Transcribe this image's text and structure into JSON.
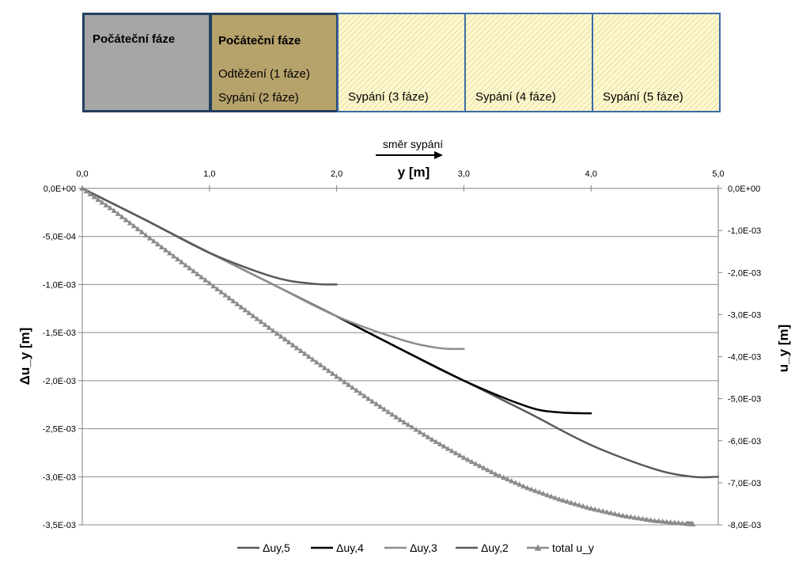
{
  "phases": [
    {
      "lines": [
        "Počáteční fáze"
      ],
      "bold_first": true
    },
    {
      "lines": [
        "Počáteční fáze",
        "Odtěžení (1 fáze)",
        "Sypání (2 fáze)"
      ],
      "bold_first": true
    },
    {
      "lines": [
        "Sypání (3 fáze)"
      ],
      "bold_first": false
    },
    {
      "lines": [
        "Sypání (4 fáze)"
      ],
      "bold_first": false
    },
    {
      "lines": [
        "Sypání (5 fáze)"
      ],
      "bold_first": false
    }
  ],
  "direction_label": "směr sypání",
  "colors": {
    "phase0_fill": "#a6a6a6",
    "phase1_fill": "#b6a26b",
    "phase_hatch_fill": "#fdf8cf",
    "phase_border": "#3b6aa6",
    "grid": "#8c8c8c",
    "series_dark": "#595959",
    "series_black": "#000000",
    "series_light": "#8c8c8c",
    "series_total": "#8c8c8c"
  },
  "chart_data": {
    "type": "line",
    "xlabel": "y [m]",
    "ylabel_left": "Δu_y [m]",
    "ylabel_right": "u_y [m]",
    "xlim": [
      0,
      5
    ],
    "x_ticks": [
      "0,0",
      "1,0",
      "2,0",
      "3,0",
      "4,0",
      "5,0"
    ],
    "ylim_left": [
      -0.0035,
      0
    ],
    "y_ticks_left": [
      "0,0E+00",
      "-5,0E-04",
      "-1,0E-03",
      "-1,5E-03",
      "-2,0E-03",
      "-2,5E-03",
      "-3,0E-03",
      "-3,5E-03"
    ],
    "ylim_right": [
      -0.008,
      0
    ],
    "y_ticks_right": [
      "0,0E+00",
      "-1,0E-03",
      "-2,0E-03",
      "-3,0E-03",
      "-4,0E-03",
      "-5,0E-03",
      "-6,0E-03",
      "-7,0E-03",
      "-8,0E-03"
    ],
    "grid": "horizontal",
    "legend_position": "bottom",
    "series": [
      {
        "name": "Δuy,5",
        "axis": "left",
        "color": "#595959",
        "marker": "none",
        "x": [
          0,
          0.5,
          1.0,
          1.5,
          2.0,
          2.5,
          3.0,
          3.5,
          4.0,
          4.5,
          4.8,
          5.0
        ],
        "y": [
          0,
          -0.00033,
          -0.00067,
          -0.001,
          -0.00133,
          -0.00167,
          -0.002,
          -0.00233,
          -0.00267,
          -0.00292,
          -0.003,
          -0.003
        ]
      },
      {
        "name": "Δuy,4",
        "axis": "left",
        "color": "#000000",
        "marker": "none",
        "x": [
          2.0,
          2.5,
          3.0,
          3.5,
          3.75,
          4.0
        ],
        "y": [
          -0.00133,
          -0.00167,
          -0.002,
          -0.00227,
          -0.00233,
          -0.00234
        ]
      },
      {
        "name": "Δuy,3",
        "axis": "left",
        "color": "#8c8c8c",
        "marker": "none",
        "x": [
          0,
          0.5,
          1.0,
          1.5,
          2.0,
          2.5,
          2.8,
          3.0
        ],
        "y": [
          0,
          -0.00033,
          -0.00067,
          -0.001,
          -0.00133,
          -0.00157,
          -0.00166,
          -0.00167
        ]
      },
      {
        "name": "Δuy,2",
        "axis": "left",
        "color": "#595959",
        "marker": "none",
        "x": [
          0,
          0.5,
          1.0,
          1.5,
          1.8,
          2.0
        ],
        "y": [
          0,
          -0.00033,
          -0.00067,
          -0.00092,
          -0.00099,
          -0.001
        ]
      },
      {
        "name": "total u_y",
        "axis": "right",
        "color": "#8c8c8c",
        "marker": "triangle",
        "x": [
          0,
          0.25,
          0.5,
          0.75,
          1.0,
          1.25,
          1.5,
          1.75,
          2.0,
          2.25,
          2.5,
          2.75,
          3.0,
          3.25,
          3.5,
          3.75,
          4.0,
          4.25,
          4.5,
          4.75,
          4.8
        ],
        "y": [
          0,
          -0.00053,
          -0.00111,
          -0.00168,
          -0.00225,
          -0.00282,
          -0.00338,
          -0.00393,
          -0.00447,
          -0.005,
          -0.0055,
          -0.00597,
          -0.0064,
          -0.00679,
          -0.00712,
          -0.00739,
          -0.00761,
          -0.00778,
          -0.0079,
          -0.00797,
          -0.00798
        ]
      }
    ]
  }
}
